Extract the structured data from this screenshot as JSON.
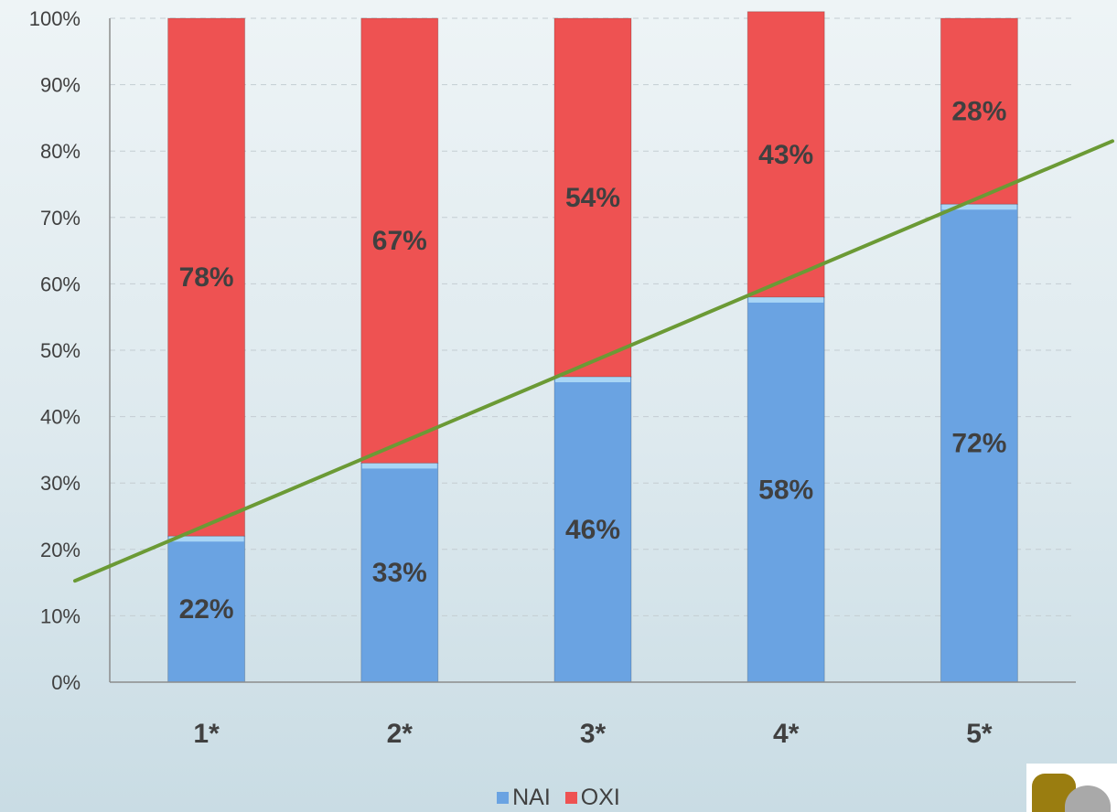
{
  "chart_data": {
    "type": "bar",
    "stacked": true,
    "categories": [
      "1*",
      "2*",
      "3*",
      "4*",
      "5*"
    ],
    "series": [
      {
        "name": "NAI",
        "values": [
          22,
          33,
          46,
          58,
          72
        ],
        "color": "#6aa3e2"
      },
      {
        "name": "OXI",
        "values": [
          78,
          67,
          54,
          43,
          28
        ],
        "color": "#ee5252"
      }
    ],
    "data_labels": {
      "NAI": [
        "22%",
        "33%",
        "46%",
        "58%",
        "72%"
      ],
      "OXI": [
        "78%",
        "67%",
        "54%",
        "43%",
        "28%"
      ]
    },
    "ylim": [
      0,
      100
    ],
    "yticks": [
      "0%",
      "10%",
      "20%",
      "30%",
      "40%",
      "50%",
      "60%",
      "70%",
      "80%",
      "90%",
      "100%"
    ],
    "grid": true,
    "legend": "bottom",
    "trendline": {
      "color": "#6b9a35",
      "start_value": 16.5,
      "end_value": 81.5
    }
  }
}
